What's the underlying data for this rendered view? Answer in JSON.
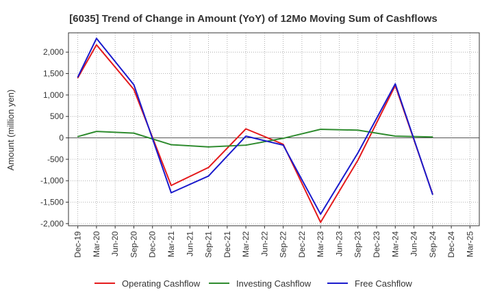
{
  "chart_data": {
    "type": "line",
    "title": "[6035]  Trend of Change in Amount (YoY) of 12Mo Moving Sum of Cashflows",
    "xlabel": "",
    "ylabel": "Amount (million yen)",
    "ylim": [
      -2050,
      2450
    ],
    "yticks": [
      -2000,
      -1500,
      -1000,
      -500,
      0,
      500,
      1000,
      1500,
      2000
    ],
    "ytick_labels": [
      "-2,000",
      "-1,500",
      "-1,000",
      "-500",
      "0",
      "500",
      "1,000",
      "1,500",
      "2,000"
    ],
    "categories": [
      "Dec-19",
      "Mar-20",
      "Jun-20",
      "Sep-20",
      "Dec-20",
      "Mar-21",
      "Jun-21",
      "Sep-21",
      "Dec-21",
      "Mar-22",
      "Jun-22",
      "Sep-22",
      "Dec-22",
      "Mar-23",
      "Jun-23",
      "Sep-23",
      "Dec-23",
      "Mar-24",
      "Jun-24",
      "Sep-24",
      "Dec-24",
      "Mar-25"
    ],
    "grid": true,
    "legend_position": "bottom",
    "series": [
      {
        "name": "Operating Cashflow",
        "color": "#e41a1c",
        "values": [
          1400,
          2170,
          null,
          1130,
          null,
          -1110,
          null,
          -690,
          null,
          210,
          null,
          -150,
          null,
          -1970,
          null,
          -520,
          null,
          1220,
          null,
          -1310,
          null,
          null
        ]
      },
      {
        "name": "Investing Cashflow",
        "color": "#2e8b2e",
        "values": [
          30,
          150,
          null,
          110,
          null,
          -160,
          null,
          -210,
          null,
          -170,
          null,
          -10,
          null,
          200,
          null,
          180,
          null,
          40,
          null,
          20,
          null,
          null
        ]
      },
      {
        "name": "Free Cashflow",
        "color": "#1a1acc",
        "values": [
          1420,
          2320,
          null,
          1240,
          null,
          -1280,
          null,
          -890,
          null,
          40,
          null,
          -170,
          null,
          -1780,
          null,
          -350,
          null,
          1260,
          null,
          -1320,
          null,
          null
        ]
      }
    ]
  }
}
